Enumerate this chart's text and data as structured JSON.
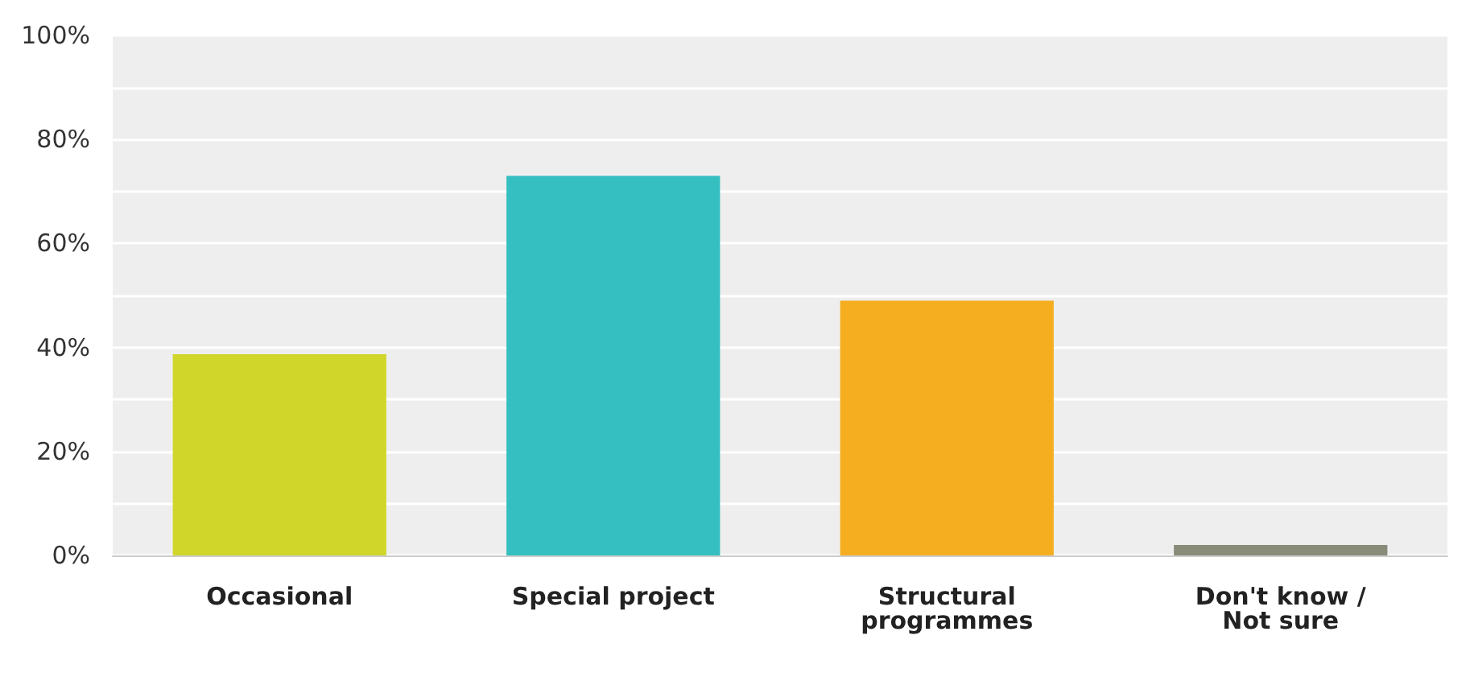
{
  "chart_data": {
    "type": "bar",
    "categories": [
      "Occasional",
      "Special project",
      "Structural programmes",
      "Don't know / Not sure"
    ],
    "values": [
      38.7,
      73,
      49,
      2
    ],
    "colors": [
      "#d0d62a",
      "#35bfc0",
      "#f5ae20",
      "#8a8c7a"
    ],
    "ylim": [
      0,
      100
    ],
    "yticks": [
      {
        "value": 0,
        "label": "0%"
      },
      {
        "value": 10,
        "label": null
      },
      {
        "value": 20,
        "label": "20%"
      },
      {
        "value": 30,
        "label": null
      },
      {
        "value": 40,
        "label": "40%"
      },
      {
        "value": 50,
        "label": null
      },
      {
        "value": 60,
        "label": "60%"
      },
      {
        "value": 70,
        "label": null
      },
      {
        "value": 80,
        "label": "80%"
      },
      {
        "value": 90,
        "label": null
      },
      {
        "value": 100,
        "label": "100%"
      }
    ],
    "grid": "y"
  }
}
